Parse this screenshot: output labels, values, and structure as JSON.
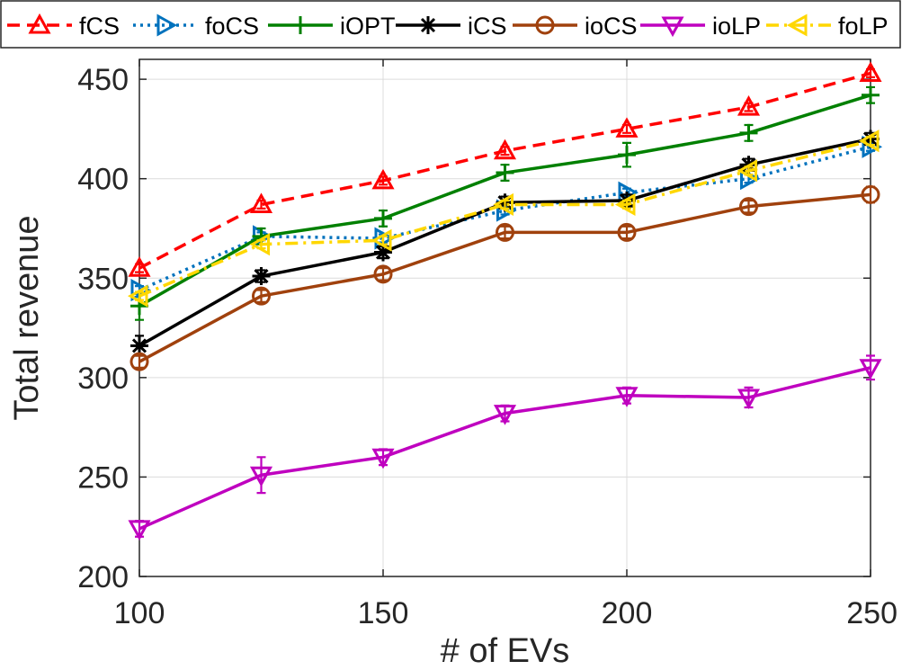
{
  "chart_data": {
    "type": "line",
    "title": "",
    "xlabel": "# of EVs",
    "ylabel": "Total revenue",
    "x": [
      100,
      125,
      150,
      175,
      200,
      225,
      250
    ],
    "xlim": [
      100,
      250
    ],
    "ylim": [
      200,
      460
    ],
    "xticks": [
      100,
      150,
      200,
      250
    ],
    "yticks": [
      200,
      250,
      300,
      350,
      400,
      450
    ],
    "xtick_labels": [
      "100",
      "150",
      "200",
      "250"
    ],
    "ytick_labels": [
      "200",
      "250",
      "300",
      "350",
      "400",
      "450"
    ],
    "grid": true,
    "legend_position": "top",
    "series": [
      {
        "name": "fCS",
        "color": "#ff0000",
        "dash": "dashed",
        "marker": "triangle-up",
        "values": [
          355,
          387,
          399,
          414,
          425,
          436,
          453
        ],
        "errors": [
          2,
          2,
          2,
          2,
          2,
          2,
          2
        ]
      },
      {
        "name": "foCS",
        "color": "#0072bd",
        "dash": "dotted",
        "marker": "triangle-right",
        "values": [
          344,
          371,
          370,
          384,
          393,
          400,
          416
        ],
        "errors": [
          2,
          2,
          2,
          2,
          2,
          2,
          2
        ]
      },
      {
        "name": "iOPT",
        "color": "#008000",
        "dash": "solid",
        "marker": "plus",
        "values": [
          336,
          371,
          380,
          403,
          412,
          423,
          442
        ],
        "errors": [
          7,
          4,
          4,
          4,
          6,
          4,
          4
        ]
      },
      {
        "name": "iCS",
        "color": "#000000",
        "dash": "solid",
        "marker": "star",
        "values": [
          316,
          351,
          363,
          388,
          389,
          407,
          420
        ],
        "errors": [
          5,
          3,
          3,
          3,
          3,
          3,
          3
        ]
      },
      {
        "name": "ioCS",
        "color": "#a0410d",
        "dash": "solid",
        "marker": "circle",
        "values": [
          308,
          341,
          352,
          373,
          373,
          386,
          392
        ],
        "errors": [
          3,
          3,
          3,
          3,
          3,
          3,
          4
        ]
      },
      {
        "name": "ioLP",
        "color": "#bf00bf",
        "dash": "solid",
        "marker": "triangle-down",
        "values": [
          224,
          251,
          260,
          282,
          291,
          290,
          305
        ],
        "errors": [
          4,
          9,
          4,
          4,
          4,
          5,
          6
        ]
      },
      {
        "name": "foLP",
        "color": "#ffd700",
        "dash": "dashdot",
        "marker": "triangle-left",
        "values": [
          341,
          367,
          369,
          387,
          387,
          404,
          419
        ],
        "errors": [
          2,
          2,
          2,
          2,
          2,
          2,
          2
        ]
      }
    ]
  }
}
